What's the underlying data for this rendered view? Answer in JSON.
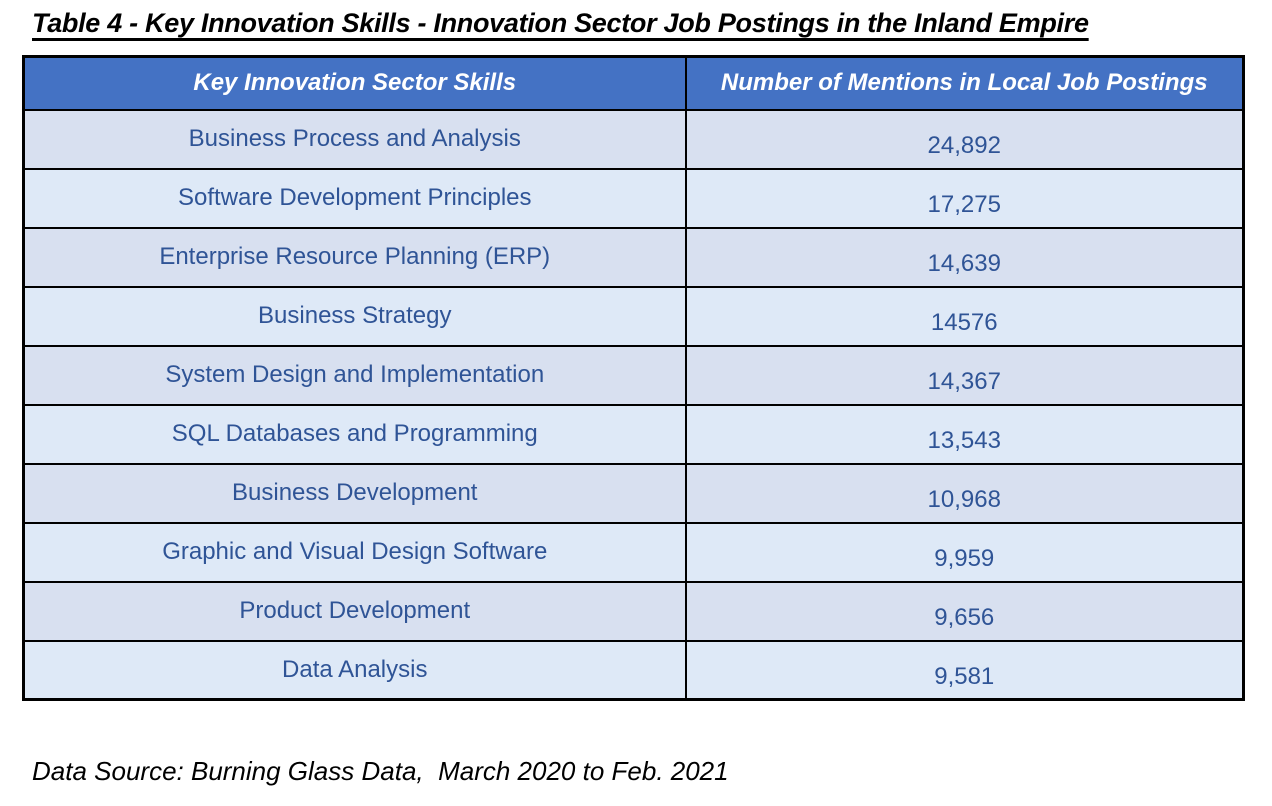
{
  "title": "Table 4 - Key Innovation Skills - Innovation Sector Job Postings in the Inland Empire",
  "table": {
    "columns": [
      "Key Innovation Sector Skills",
      "Number of Mentions in Local Job Postings"
    ],
    "rows": [
      {
        "skill": "Business Process and Analysis",
        "mentions": "24,892"
      },
      {
        "skill": "Software Development Principles",
        "mentions": "17,275"
      },
      {
        "skill": "Enterprise Resource Planning (ERP)",
        "mentions": "14,639"
      },
      {
        "skill": "Business Strategy",
        "mentions": "14576"
      },
      {
        "skill": "System Design and Implementation",
        "mentions": "14,367"
      },
      {
        "skill": "SQL Databases and Programming",
        "mentions": "13,543"
      },
      {
        "skill": "Business Development",
        "mentions": "10,968"
      },
      {
        "skill": "Graphic and Visual Design Software",
        "mentions": "9,959"
      },
      {
        "skill": "Product Development",
        "mentions": "9,656"
      },
      {
        "skill": "Data Analysis",
        "mentions": "9,581"
      }
    ]
  },
  "footer": {
    "source_note": "Data Source: Burning Glass Data,  March 2020 to Feb. 2021"
  },
  "colors": {
    "header_bg": "#4472C4",
    "header_text": "#FFFFFF",
    "row_odd_bg": "#D8E0F0",
    "row_even_bg": "#DEE9F7",
    "cell_text": "#2F5496",
    "border": "#000000",
    "title_text": "#000000"
  }
}
